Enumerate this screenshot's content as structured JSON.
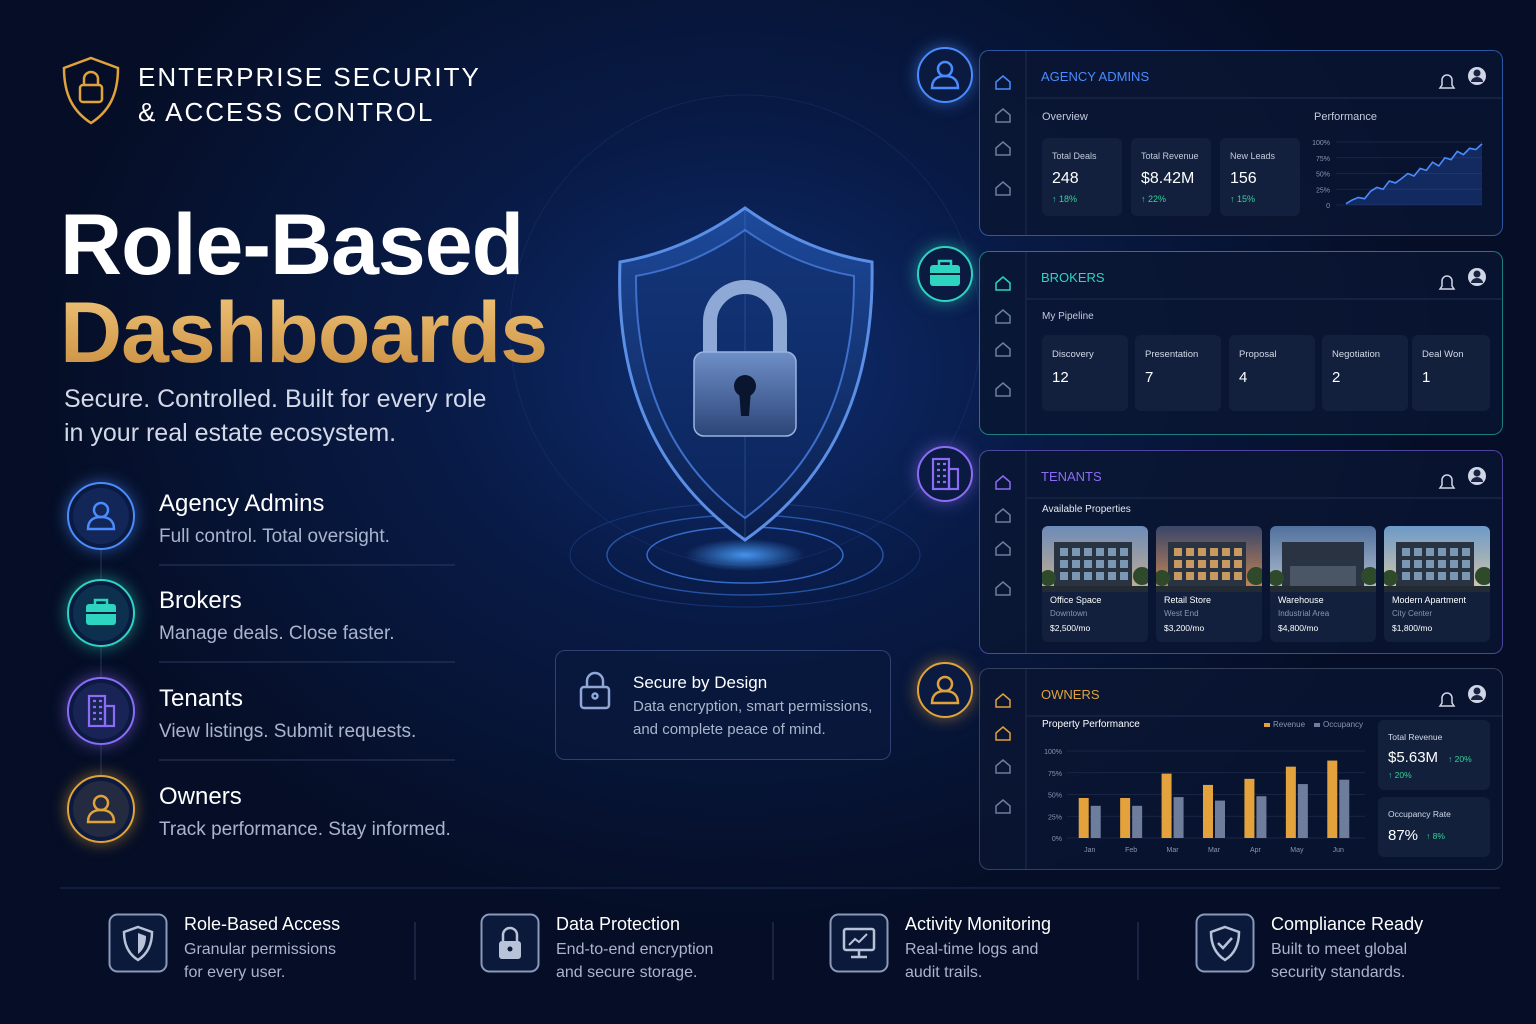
{
  "header": {
    "title_lines": [
      "ENTERPRISE SECURITY",
      "& ACCESS CONTROL"
    ]
  },
  "hero": {
    "title_line1": "Role-Based",
    "title_line2": "Dashboards",
    "subtitle_lines": [
      "Secure. Controlled. Built for every role",
      "in your real estate ecosystem."
    ]
  },
  "roles": [
    {
      "name": "Agency Admins",
      "desc": "Full control. Total oversight."
    },
    {
      "name": "Brokers",
      "desc": "Manage deals. Close faster."
    },
    {
      "name": "Tenants",
      "desc": "View listings. Submit requests."
    },
    {
      "name": "Owners",
      "desc": "Track performance. Stay informed."
    }
  ],
  "secure_card": {
    "title": "Secure by Design",
    "text_lines": [
      "Data encryption, smart permissions,",
      "and complete peace of mind."
    ]
  },
  "agency_panel": {
    "title": "AGENCY ADMINS",
    "overview_label": "Overview",
    "stats": [
      {
        "label": "Total Deals",
        "value": 248,
        "change": "↑ 18%"
      },
      {
        "label": "Total Revenue",
        "value": "$8.42M",
        "change": "↑ 22%"
      },
      {
        "label": "New Leads",
        "value": 156,
        "change": "↑ 15%"
      }
    ],
    "chart": {
      "title": "Performance",
      "ylim": [
        0,
        100
      ],
      "yticks": [
        {
          "value": 100,
          "label": "100%"
        },
        {
          "value": 75,
          "label": "75%"
        },
        {
          "value": 50,
          "label": "50%"
        },
        {
          "value": 25,
          "label": "25%"
        },
        0
      ],
      "values": [
        2,
        8,
        12,
        10,
        22,
        28,
        25,
        38,
        35,
        42,
        50,
        46,
        58,
        55,
        68,
        62,
        75,
        72,
        85,
        80,
        90,
        88,
        97
      ]
    }
  },
  "brokers_panel": {
    "title": "BROKERS",
    "pipeline_label": "My Pipeline",
    "stages": [
      {
        "name": "Discovery",
        "count": 12
      },
      {
        "name": "Presentation",
        "count": 7
      },
      {
        "name": "Proposal",
        "count": 4
      },
      {
        "name": "Negotiation",
        "count": 2
      },
      {
        "name": "Deal Won",
        "count": 1
      }
    ]
  },
  "tenants_panel": {
    "title": "TENANTS",
    "section_label": "Available Properties",
    "properties": [
      {
        "name": "Office Space",
        "location": "Downtown",
        "price": "$2,500/mo"
      },
      {
        "name": "Retail Store",
        "location": "West End",
        "price": "$3,200/mo"
      },
      {
        "name": "Warehouse",
        "location": "Industrial Area",
        "price": "$4,800/mo"
      },
      {
        "name": "Modern Apartment",
        "location": "City Center",
        "price": "$1,800/mo"
      }
    ]
  },
  "owners_panel": {
    "title": "OWNERS",
    "chart": {
      "type": "bar",
      "title": "Property Performance",
      "categories": [
        "Jan",
        "Feb",
        "Mar",
        "Mar",
        "Apr",
        "May",
        "Jun"
      ],
      "ylim": [
        0,
        100
      ],
      "yticks": [
        {
          "value": 100,
          "label": "100%"
        },
        {
          "value": 75,
          "label": "75%"
        },
        {
          "value": 50,
          "label": "50%"
        },
        {
          "value": 25,
          "label": "25%"
        },
        {
          "value": 0,
          "label": "0%"
        }
      ],
      "series": [
        {
          "name": "Revenue",
          "color": "#e3a23b",
          "values": [
            46,
            46,
            74,
            61,
            68,
            82,
            89
          ]
        },
        {
          "name": "Occupancy",
          "color": "#6f7d9c",
          "values": [
            37,
            37,
            47,
            43,
            48,
            62,
            67
          ]
        }
      ]
    },
    "stats": [
      {
        "label": "Total Revenue",
        "value": "$5.63M",
        "changes": [
          "↑ 20%",
          "↑ 20%"
        ]
      },
      {
        "label": "Occupancy Rate",
        "value": "87%",
        "changes": [
          "↑ 8%"
        ]
      }
    ]
  },
  "features": [
    {
      "title": "Role-Based Access",
      "text_lines": [
        "Granular permissions",
        "for every user."
      ]
    },
    {
      "title": "Data Protection",
      "text_lines": [
        "End-to-end encryption",
        "and secure storage."
      ]
    },
    {
      "title": "Activity Monitoring",
      "text_lines": [
        "Real-time logs and",
        "audit trails."
      ]
    },
    {
      "title": "Compliance Ready",
      "text_lines": [
        "Built to meet global",
        "security standards."
      ]
    }
  ]
}
